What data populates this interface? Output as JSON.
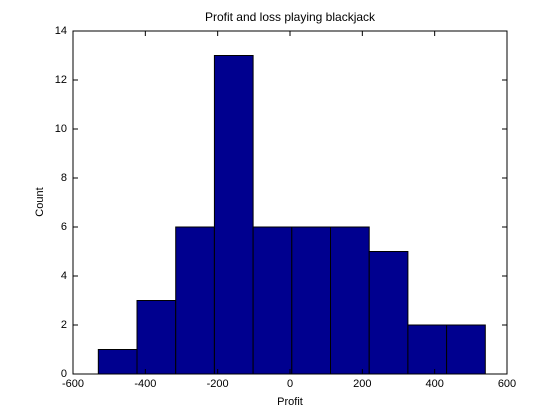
{
  "chart_data": {
    "type": "histogram",
    "title": "Profit and loss playing blackjack",
    "x_label": "Profit",
    "y_label": "Count",
    "bins": [
      -530,
      -423,
      -316,
      -209,
      -102,
      5,
      112,
      219,
      326,
      433,
      540
    ],
    "values": [
      1,
      3,
      6,
      13,
      6,
      6,
      6,
      5,
      2,
      2
    ],
    "color": "#00008f",
    "xlim": [
      -600,
      600
    ],
    "xticks": [
      -600,
      -400,
      -200,
      0,
      200,
      400,
      600
    ],
    "ylim": [
      0,
      14
    ],
    "yticks": [
      0,
      2,
      4,
      6,
      8,
      10,
      12,
      14
    ]
  }
}
